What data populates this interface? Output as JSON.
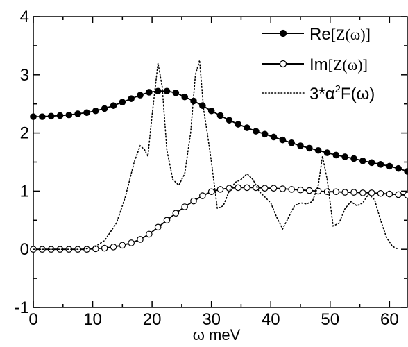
{
  "chart_data": {
    "type": "line",
    "title": "",
    "xlabel": "ω meV",
    "ylabel": "",
    "xlim": [
      0,
      63
    ],
    "ylim": [
      -1,
      4
    ],
    "x_ticks": [
      0,
      10,
      20,
      30,
      40,
      50,
      60
    ],
    "y_ticks": [
      -1,
      0,
      1,
      2,
      3,
      4
    ],
    "legend_position": "top-right",
    "series": [
      {
        "name": "Re[Z(ω)]",
        "style": "solid-filled-circles",
        "color": "#000000",
        "x": [
          0,
          1.5,
          3,
          4.5,
          6,
          7.5,
          9,
          10.5,
          12,
          13.5,
          15,
          16.5,
          18,
          19.5,
          21,
          22.5,
          24,
          25.5,
          27,
          28.5,
          30,
          31.5,
          33,
          34.5,
          36,
          37.5,
          39,
          40.5,
          42,
          43.5,
          45,
          46.5,
          48,
          49.5,
          51,
          52.5,
          54,
          55.5,
          57,
          58.5,
          60,
          61.5,
          63
        ],
        "values": [
          2.28,
          2.28,
          2.29,
          2.3,
          2.31,
          2.33,
          2.35,
          2.38,
          2.42,
          2.47,
          2.53,
          2.59,
          2.65,
          2.7,
          2.72,
          2.72,
          2.69,
          2.62,
          2.55,
          2.47,
          2.38,
          2.3,
          2.22,
          2.15,
          2.09,
          2.03,
          1.98,
          1.93,
          1.88,
          1.83,
          1.78,
          1.74,
          1.7,
          1.66,
          1.62,
          1.59,
          1.56,
          1.52,
          1.49,
          1.46,
          1.43,
          1.39,
          1.34
        ]
      },
      {
        "name": "Im[Z(ω)]",
        "style": "solid-open-circles",
        "color": "#000000",
        "x": [
          0,
          1.5,
          3,
          4.5,
          6,
          7.5,
          9,
          10.5,
          12,
          13.5,
          15,
          16.5,
          18,
          19.5,
          21,
          22.5,
          24,
          25.5,
          27,
          28.5,
          30,
          31.5,
          33,
          34.5,
          36,
          37.5,
          39,
          40.5,
          42,
          43.5,
          45,
          46.5,
          48,
          49.5,
          51,
          52.5,
          54,
          55.5,
          57,
          58.5,
          60,
          61.5,
          63
        ],
        "values": [
          0,
          0,
          0,
          0,
          0,
          0,
          0,
          0.01,
          0.02,
          0.04,
          0.07,
          0.11,
          0.17,
          0.26,
          0.38,
          0.5,
          0.62,
          0.73,
          0.83,
          0.92,
          0.99,
          1.03,
          1.05,
          1.06,
          1.06,
          1.06,
          1.05,
          1.05,
          1.04,
          1.03,
          1.02,
          1.01,
          1.0,
          0.99,
          0.99,
          0.98,
          0.98,
          0.97,
          0.97,
          0.96,
          0.95,
          0.94,
          0.93
        ]
      },
      {
        "name": "3*α²F(ω)",
        "style": "dotted",
        "color": "#000000",
        "x": [
          0,
          5,
          8,
          10,
          12,
          14,
          15.5,
          17,
          18,
          18.7,
          19.3,
          20,
          21,
          21.7,
          22.5,
          23.5,
          24.5,
          25.5,
          26.5,
          27.3,
          28,
          28.7,
          29.3,
          30,
          31,
          32,
          33,
          34,
          35,
          36,
          37,
          38,
          39,
          40,
          41,
          42,
          43,
          44,
          45,
          46,
          47,
          48,
          48.7,
          49.5,
          50.5,
          51.5,
          52.5,
          53.5,
          54.5,
          55.5,
          56.5,
          57.5,
          58.5,
          59.5,
          60.5,
          61.5
        ],
        "values": [
          0,
          0,
          0,
          0.02,
          0.15,
          0.45,
          0.9,
          1.5,
          1.78,
          1.72,
          1.6,
          2.3,
          3.2,
          2.8,
          1.7,
          1.2,
          1.1,
          1.3,
          2.0,
          3.0,
          3.25,
          2.4,
          2.0,
          1.5,
          0.7,
          0.75,
          1.0,
          1.15,
          1.2,
          1.3,
          1.2,
          1.0,
          0.9,
          0.8,
          0.55,
          0.35,
          0.55,
          0.75,
          0.8,
          0.78,
          0.82,
          1.1,
          1.6,
          1.2,
          0.4,
          0.45,
          0.7,
          0.82,
          0.75,
          0.8,
          0.95,
          0.85,
          0.5,
          0.2,
          0.05,
          0.0
        ]
      }
    ],
    "legend": [
      {
        "label_main": "Re",
        "label_bracketed": "[Z(ω)]"
      },
      {
        "label_main": "Im",
        "label_bracketed": "[Z(ω)]"
      },
      {
        "label_main": "3*α",
        "label_sup": "2",
        "label_tail": "F(ω)"
      }
    ]
  }
}
